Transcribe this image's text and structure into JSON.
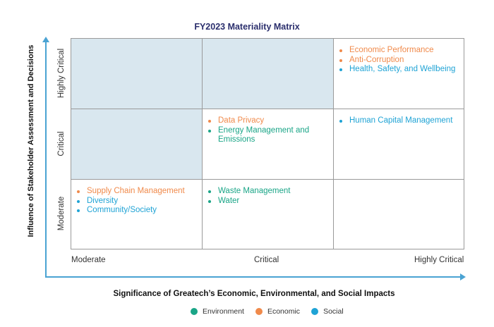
{
  "title": "FY2023 Materiality Matrix",
  "y_axis_title": "Influence of Stakeholder Assessment and Decisions",
  "x_axis_title": "Significance of Greatech’s Economic, Environmental, and Social Impacts",
  "y_levels": [
    "Highly Critical",
    "Critical",
    "Moderate"
  ],
  "x_levels": [
    "Moderate",
    "Critical",
    "Highly Critical"
  ],
  "colors": {
    "Environment": "#1aa587",
    "Economic": "#f08a4b",
    "Social": "#1fa3d5",
    "shade": "#d9e7ef",
    "axis": "#4aa3d3"
  },
  "cells": {
    "hc_m": [],
    "hc_c": [],
    "hc_hc": [
      {
        "label": "Economic Performance",
        "category": "Economic"
      },
      {
        "label": "Anti-Corruption",
        "category": "Economic"
      },
      {
        "label": "Health, Safety, and Wellbeing",
        "category": "Social"
      }
    ],
    "c_m": [],
    "c_c": [
      {
        "label": "Data Privacy",
        "category": "Economic"
      },
      {
        "label": "Energy Management and Emissions",
        "category": "Environment"
      }
    ],
    "c_hc": [
      {
        "label": "Human Capital Management",
        "category": "Social"
      }
    ],
    "m_m": [
      {
        "label": "Supply Chain Management",
        "category": "Economic"
      },
      {
        "label": "Diversity",
        "category": "Social"
      },
      {
        "label": "Community/Society",
        "category": "Social"
      }
    ],
    "m_c": [
      {
        "label": "Waste Management",
        "category": "Environment"
      },
      {
        "label": "Water",
        "category": "Environment"
      }
    ],
    "m_hc": []
  },
  "legend": [
    {
      "label": "Environment",
      "category": "Environment"
    },
    {
      "label": "Economic",
      "category": "Economic"
    },
    {
      "label": "Social",
      "category": "Social"
    }
  ]
}
